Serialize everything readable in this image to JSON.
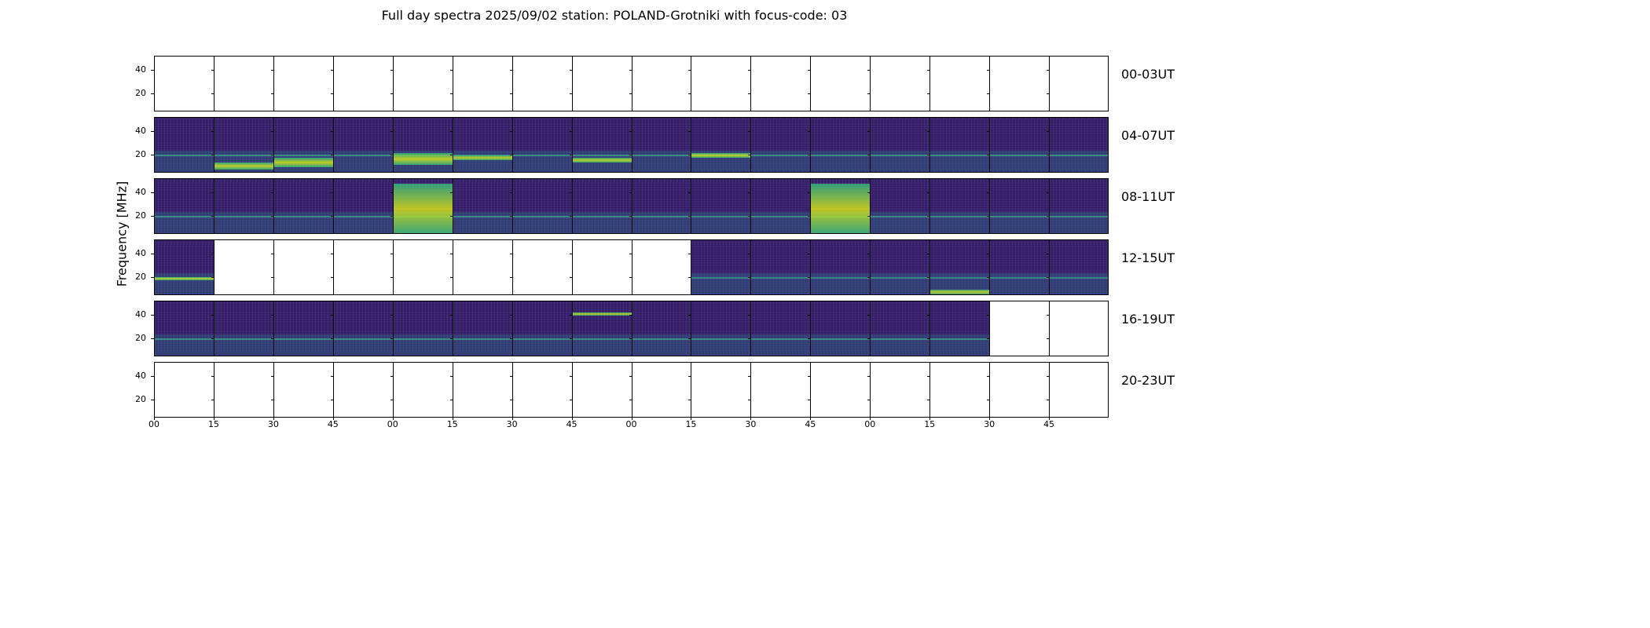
{
  "title": "Full day spectra 2025/09/02 station: POLAND-Grotniki with focus-code: 03",
  "chart_data": {
    "type": "heatmap",
    "title": "Full day spectra 2025/09/02 station: POLAND-Grotniki with focus-code: 03",
    "ylabel": "Frequency [MHz]",
    "xlabel": "",
    "y_ticks": [
      "40",
      "20"
    ],
    "y_tick_values": [
      40,
      20
    ],
    "ylim": [
      5,
      52
    ],
    "x_ticks": [
      "00",
      "15",
      "30",
      "45",
      "00",
      "15",
      "30",
      "45",
      "00",
      "15",
      "30",
      "45",
      "00",
      "15",
      "30",
      "45"
    ],
    "panels_per_row": 16,
    "minutes_per_panel": 15,
    "colormap": "viridis",
    "rows": [
      {
        "label": "00-03UT",
        "panels_with_data": []
      },
      {
        "label": "04-07UT",
        "panels_with_data": [
          1,
          2,
          3,
          4,
          5,
          6,
          7,
          8,
          9,
          10,
          11,
          12,
          13,
          14,
          15,
          16
        ]
      },
      {
        "label": "08-11UT",
        "panels_with_data": [
          1,
          2,
          3,
          4,
          5,
          6,
          7,
          8,
          9,
          10,
          11,
          12,
          13,
          14,
          15,
          16
        ]
      },
      {
        "label": "12-15UT",
        "panels_with_data": [
          1,
          10,
          11,
          12,
          13,
          14,
          15,
          16
        ]
      },
      {
        "label": "16-19UT",
        "panels_with_data": [
          1,
          2,
          3,
          4,
          5,
          6,
          7,
          8,
          9,
          10,
          11,
          12,
          13,
          14
        ]
      },
      {
        "label": "20-23UT",
        "panels_with_data": []
      }
    ],
    "bright_bands_MHz": [
      {
        "row": 1,
        "panel": 2,
        "low": 8,
        "high": 14
      },
      {
        "row": 1,
        "panel": 3,
        "low": 10,
        "high": 18
      },
      {
        "row": 1,
        "panel": 5,
        "low": 12,
        "high": 22
      },
      {
        "row": 1,
        "panel": 6,
        "low": 16,
        "high": 20
      },
      {
        "row": 1,
        "panel": 8,
        "low": 14,
        "high": 18
      },
      {
        "row": 1,
        "panel": 10,
        "low": 18,
        "high": 22
      },
      {
        "row": 2,
        "panel": 5,
        "low": 5,
        "high": 48
      },
      {
        "row": 2,
        "panel": 12,
        "low": 5,
        "high": 48
      },
      {
        "row": 3,
        "panel": 1,
        "low": 18,
        "high": 21
      },
      {
        "row": 3,
        "panel": 14,
        "low": 6,
        "high": 10
      },
      {
        "row": 4,
        "panel": 8,
        "low": 40,
        "high": 43
      }
    ]
  }
}
